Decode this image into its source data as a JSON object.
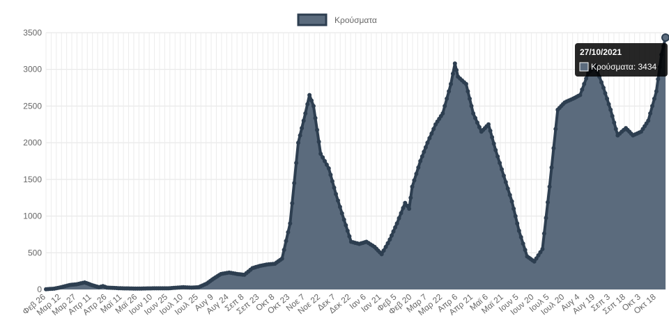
{
  "chart_data": {
    "type": "area",
    "title": "",
    "xlabel": "",
    "ylabel": "",
    "ylim": [
      0,
      3500
    ],
    "y_ticks": [
      0,
      500,
      1000,
      1500,
      2000,
      2500,
      3000,
      3500
    ],
    "grid": true,
    "legend_position": "top-center",
    "series": [
      {
        "name": "Κρούσματα",
        "fill_color": "#5b6b7d",
        "line_color": "#2d3e50",
        "points": [
          [
            "26/02/2020",
            3
          ],
          [
            "05/03/2020",
            10
          ],
          [
            "12/03/2020",
            30
          ],
          [
            "20/03/2020",
            60
          ],
          [
            "27/03/2020",
            70
          ],
          [
            "04/04/2020",
            95
          ],
          [
            "11/04/2020",
            60
          ],
          [
            "18/04/2020",
            30
          ],
          [
            "22/04/2020",
            45
          ],
          [
            "26/04/2020",
            25
          ],
          [
            "11/05/2020",
            15
          ],
          [
            "26/05/2020",
            12
          ],
          [
            "10/06/2020",
            15
          ],
          [
            "25/06/2020",
            15
          ],
          [
            "10/07/2020",
            30
          ],
          [
            "18/07/2020",
            25
          ],
          [
            "25/07/2020",
            30
          ],
          [
            "02/08/2020",
            80
          ],
          [
            "09/08/2020",
            150
          ],
          [
            "16/08/2020",
            210
          ],
          [
            "24/08/2020",
            230
          ],
          [
            "01/09/2020",
            210
          ],
          [
            "08/09/2020",
            200
          ],
          [
            "16/09/2020",
            290
          ],
          [
            "23/09/2020",
            320
          ],
          [
            "30/09/2020",
            340
          ],
          [
            "08/10/2020",
            350
          ],
          [
            "15/10/2020",
            420
          ],
          [
            "23/10/2020",
            900
          ],
          [
            "31/10/2020",
            2000
          ],
          [
            "07/11/2020",
            2400
          ],
          [
            "11/11/2020",
            2650
          ],
          [
            "15/11/2020",
            2500
          ],
          [
            "22/11/2020",
            1850
          ],
          [
            "30/11/2020",
            1650
          ],
          [
            "07/12/2020",
            1300
          ],
          [
            "15/12/2020",
            950
          ],
          [
            "22/12/2020",
            650
          ],
          [
            "30/12/2020",
            620
          ],
          [
            "06/01/2021",
            650
          ],
          [
            "14/01/2021",
            580
          ],
          [
            "21/01/2021",
            480
          ],
          [
            "29/01/2021",
            680
          ],
          [
            "05/02/2021",
            900
          ],
          [
            "13/02/2021",
            1180
          ],
          [
            "17/02/2021",
            1100
          ],
          [
            "20/02/2021",
            1400
          ],
          [
            "28/02/2021",
            1750
          ],
          [
            "07/03/2021",
            2000
          ],
          [
            "15/03/2021",
            2250
          ],
          [
            "22/03/2021",
            2400
          ],
          [
            "30/03/2021",
            2800
          ],
          [
            "03/04/2021",
            3080
          ],
          [
            "06/04/2021",
            2900
          ],
          [
            "10/04/2021",
            2850
          ],
          [
            "14/04/2021",
            2800
          ],
          [
            "21/04/2021",
            2400
          ],
          [
            "29/04/2021",
            2150
          ],
          [
            "06/05/2021",
            2250
          ],
          [
            "13/05/2021",
            1900
          ],
          [
            "21/05/2021",
            1550
          ],
          [
            "29/05/2021",
            1200
          ],
          [
            "05/06/2021",
            800
          ],
          [
            "13/06/2021",
            450
          ],
          [
            "20/06/2021",
            380
          ],
          [
            "28/06/2021",
            550
          ],
          [
            "05/07/2021",
            1400
          ],
          [
            "13/07/2021",
            2450
          ],
          [
            "20/07/2021",
            2550
          ],
          [
            "28/07/2021",
            2600
          ],
          [
            "04/08/2021",
            2650
          ],
          [
            "12/08/2021",
            2950
          ],
          [
            "19/08/2021",
            3050
          ],
          [
            "27/08/2021",
            2750
          ],
          [
            "03/09/2021",
            2450
          ],
          [
            "10/09/2021",
            2100
          ],
          [
            "18/09/2021",
            2200
          ],
          [
            "25/09/2021",
            2100
          ],
          [
            "03/10/2021",
            2150
          ],
          [
            "10/10/2021",
            2300
          ],
          [
            "18/10/2021",
            2700
          ],
          [
            "23/10/2021",
            3200
          ],
          [
            "27/10/2021",
            3434
          ]
        ]
      }
    ],
    "x_tick_labels": [
      "Φεβ 26",
      "Μαρ 12",
      "Μαρ 27",
      "Απρ 11",
      "Απρ 26",
      "Μαϊ 11",
      "Μαϊ 26",
      "Ιουν 10",
      "Ιουν 25",
      "Ιουλ 10",
      "Ιουλ 25",
      "Αυγ 9",
      "Αυγ 24",
      "Σεπ 8",
      "Σεπ 23",
      "Οκτ 8",
      "Οκτ 23",
      "Νοε 7",
      "Νοε 22",
      "Δεκ 7",
      "Δεκ 22",
      "Ιαν 6",
      "Ιαν 21",
      "Φεβ 5",
      "Φεβ 20",
      "Μαρ 7",
      "Μαρ 22",
      "Απρ 6",
      "Απρ 21",
      "Μαϊ 6",
      "Μαϊ 21",
      "Ιουν 5",
      "Ιουν 20",
      "Ιουλ 5",
      "Ιουλ 20",
      "Αυγ 4",
      "Αυγ 19",
      "Σεπ 3",
      "Σεπ 18",
      "Οκτ 3",
      "Οκτ 18"
    ],
    "tooltip": {
      "title": "27/10/2021",
      "label": "Κρούσματα: 3434"
    }
  }
}
